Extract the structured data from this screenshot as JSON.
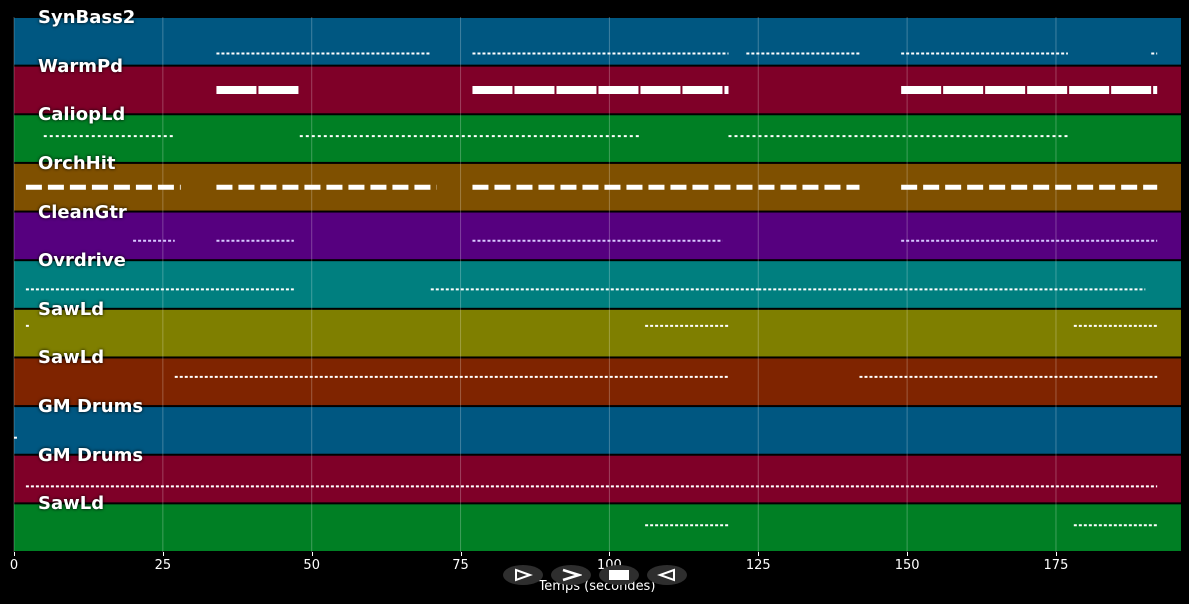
{
  "tracks": [
    {
      "name": "SynBass2",
      "color": "#005781"
    },
    {
      "name": "WarmPd",
      "color": "#7f0028"
    },
    {
      "name": "CaliopLd",
      "color": "#007f24"
    },
    {
      "name": "OrchHit",
      "color": "#7f5000"
    },
    {
      "name": "CleanGtr",
      "color": "#56007f"
    },
    {
      "name": "Ovrdrive",
      "color": "#007f7f"
    },
    {
      "name": "SawLd",
      "color": "#7f7f00"
    },
    {
      "name": "SawLd",
      "color": "#7f2400"
    },
    {
      "name": "GM Drums",
      "color": "#005781"
    },
    {
      "name": "GM Drums",
      "color": "#7f0028"
    },
    {
      "name": "SawLd",
      "color": "#007f24"
    }
  ],
  "axis": {
    "ticks": [
      "0",
      "25",
      "50",
      "75",
      "100",
      "125",
      "150",
      "175"
    ],
    "xlabel": "Temps (secondes)",
    "xmin": 0,
    "xmax": 196
  },
  "controls": {
    "play_icon": "play-outline-icon",
    "forward_icon": "forward-icon",
    "stop_icon": "stop-icon",
    "rewind_icon": "rewind-icon"
  },
  "note_activity": [
    {
      "track": 0,
      "segments": [
        [
          34,
          70
        ],
        [
          77,
          120
        ],
        [
          123,
          142
        ],
        [
          149,
          177
        ],
        [
          191,
          192
        ]
      ]
    },
    {
      "track": 1,
      "segments": [
        [
          34,
          48
        ],
        [
          77,
          120
        ],
        [
          149,
          192
        ]
      ]
    },
    {
      "track": 2,
      "segments": [
        [
          5,
          27
        ],
        [
          48,
          105
        ],
        [
          120,
          177
        ]
      ]
    },
    {
      "track": 3,
      "segments": [
        [
          2,
          28
        ],
        [
          34,
          71
        ],
        [
          77,
          142
        ],
        [
          149,
          192
        ]
      ]
    },
    {
      "track": 4,
      "segments": [
        [
          20,
          27
        ],
        [
          34,
          47
        ],
        [
          77,
          119
        ],
        [
          149,
          192
        ]
      ]
    },
    {
      "track": 5,
      "segments": [
        [
          2,
          47
        ],
        [
          70,
          125
        ],
        [
          125,
          142
        ],
        [
          142,
          190
        ]
      ]
    },
    {
      "track": 6,
      "segments": [
        [
          2,
          2.5
        ],
        [
          106,
          120
        ],
        [
          178,
          192
        ]
      ]
    },
    {
      "track": 7,
      "segments": [
        [
          27,
          120
        ],
        [
          142,
          192
        ]
      ]
    },
    {
      "track": 8,
      "segments": [
        [
          0,
          0.5
        ]
      ]
    },
    {
      "track": 9,
      "segments": [
        [
          2,
          192
        ]
      ]
    },
    {
      "track": 10,
      "segments": [
        [
          106,
          120
        ],
        [
          178,
          192
        ]
      ]
    }
  ]
}
